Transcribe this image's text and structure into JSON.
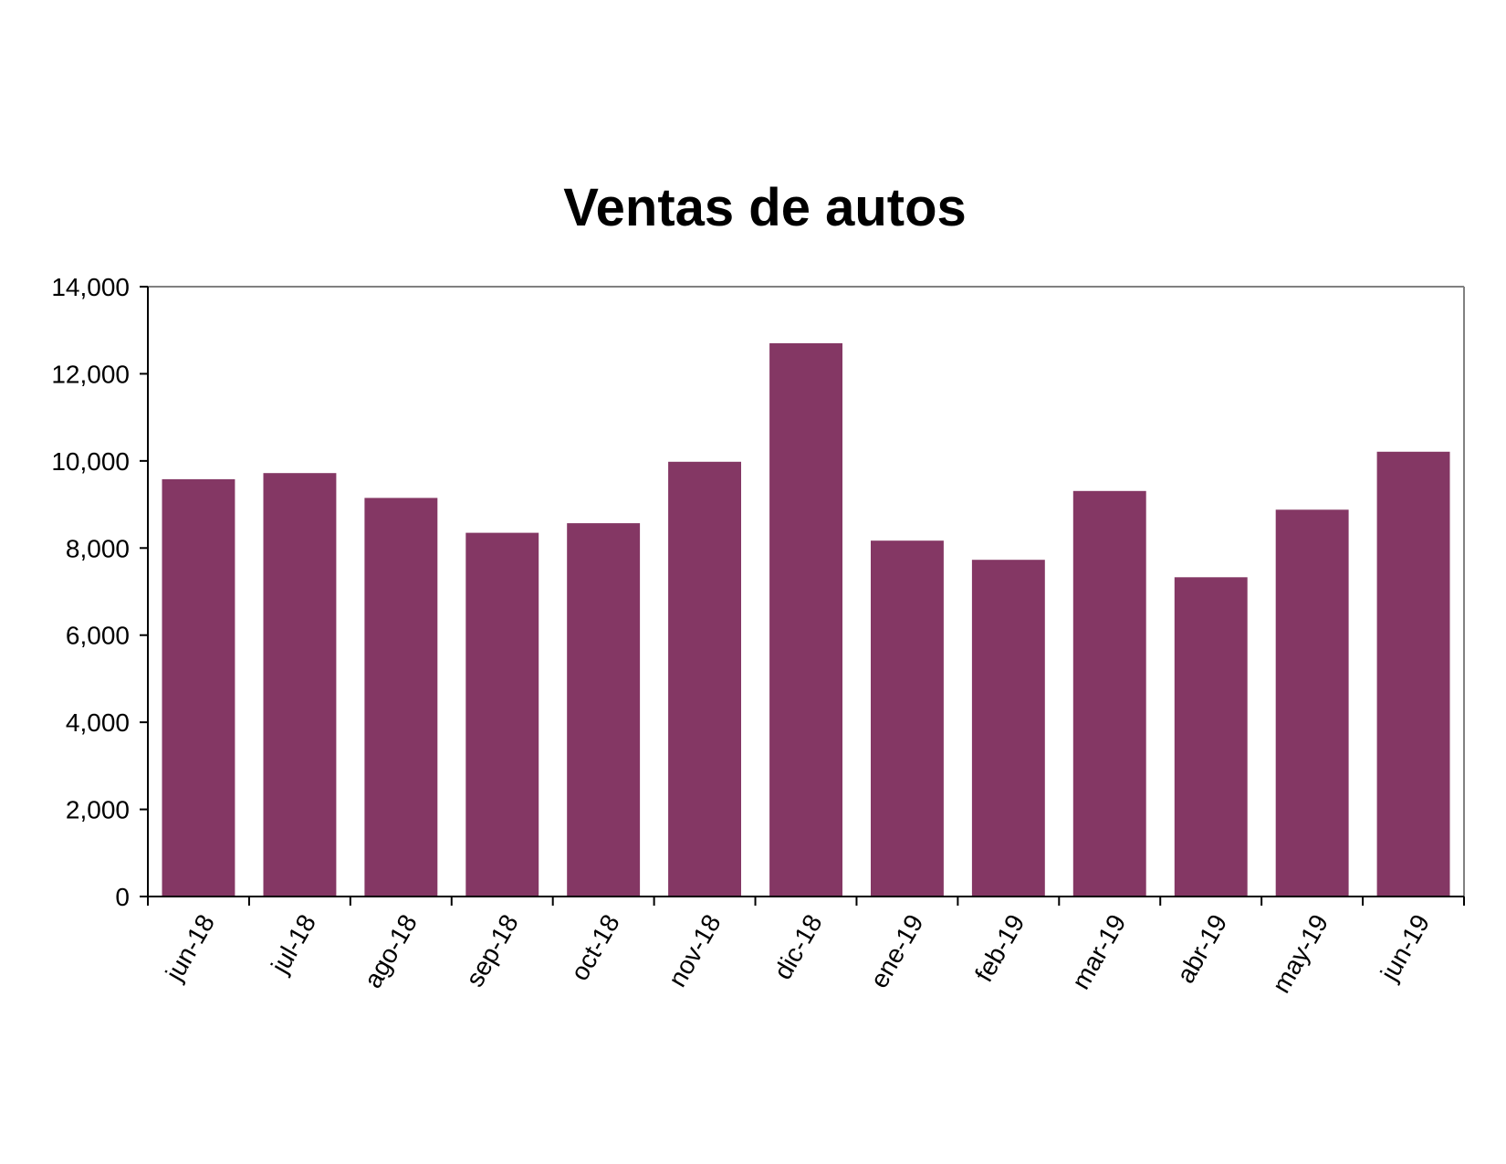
{
  "chart_data": {
    "type": "bar",
    "title": "Ventas de autos",
    "xlabel": "",
    "ylabel": "",
    "categories": [
      "jun-18",
      "jul-18",
      "ago-18",
      "sep-18",
      "oct-18",
      "nov-18",
      "dic-18",
      "ene-19",
      "feb-19",
      "mar-19",
      "abr-19",
      "may-19",
      "jun-19"
    ],
    "values": [
      9580,
      9720,
      9150,
      8350,
      8570,
      9980,
      12700,
      8170,
      7730,
      9310,
      7330,
      8880,
      10210
    ],
    "ylim": [
      0,
      14000
    ],
    "yticks": [
      0,
      2000,
      4000,
      6000,
      8000,
      10000,
      12000,
      14000
    ],
    "ytick_labels": [
      "0",
      "2,000",
      "4,000",
      "6,000",
      "8,000",
      "10,000",
      "12,000",
      "14,000"
    ],
    "grid": false,
    "legend": "none",
    "bar_color": "#843764",
    "axis_color": "#000000",
    "frame_color": "#808080"
  }
}
